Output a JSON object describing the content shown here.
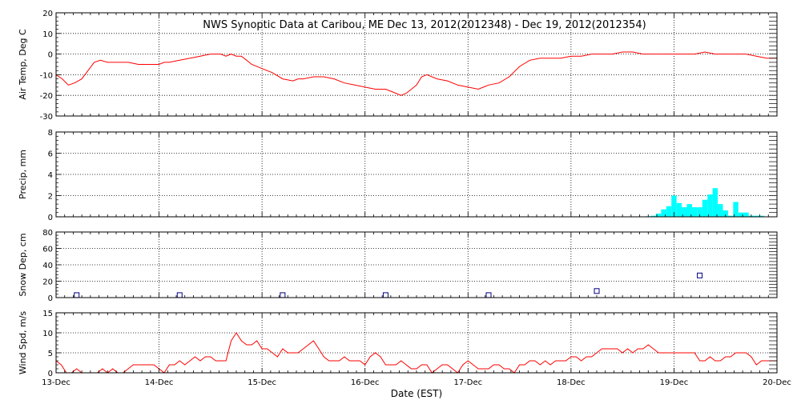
{
  "title": "NWS Synoptic Data at Caribou, ME   Dec 13, 2012(2012348) - Dec 19, 2012(2012354)",
  "xlabel": "Date (EST)",
  "x_tick_labels": [
    "13-Dec",
    "14-Dec",
    "15-Dec",
    "16-Dec",
    "17-Dec",
    "18-Dec",
    "19-Dec",
    "20-Dec"
  ],
  "colors": {
    "line": "#ff0000",
    "bar": "#00ffff",
    "marker": "#000080",
    "axis": "#000000"
  },
  "chart_data": [
    {
      "type": "line",
      "ylabel": "Air Temp, Deg C",
      "xlim": [
        0,
        7
      ],
      "ylim": [
        -30,
        20
      ],
      "yticks": [
        -30,
        -20,
        -10,
        0,
        10,
        20
      ],
      "grid": true,
      "series": [
        {
          "x": [
            0,
            0.06,
            0.12,
            0.18,
            0.25,
            0.31,
            0.37,
            0.43,
            0.5,
            0.6,
            0.7,
            0.8,
            0.9,
            1.0,
            1.05,
            1.1,
            1.2,
            1.3,
            1.4,
            1.5,
            1.55,
            1.6,
            1.65,
            1.7,
            1.75,
            1.8,
            1.85,
            1.9,
            2.0,
            2.1,
            2.2,
            2.3,
            2.35,
            2.4,
            2.5,
            2.6,
            2.7,
            2.8,
            2.9,
            3.0,
            3.1,
            3.2,
            3.25,
            3.3,
            3.35,
            3.4,
            3.45,
            3.5,
            3.55,
            3.6,
            3.7,
            3.8,
            3.9,
            4.0,
            4.1,
            4.15,
            4.2,
            4.3,
            4.4,
            4.5,
            4.6,
            4.7,
            4.8,
            4.9,
            5.0,
            5.1,
            5.2,
            5.3,
            5.4,
            5.5,
            5.6,
            5.7,
            5.8,
            5.9,
            6.0,
            6.1,
            6.2,
            6.3,
            6.4,
            6.5,
            6.6,
            6.7,
            6.8,
            6.9,
            7.0
          ],
          "y": [
            -10,
            -12,
            -15,
            -14,
            -12,
            -8,
            -4,
            -3,
            -4,
            -4,
            -4,
            -5,
            -5,
            -5,
            -4,
            -4,
            -3,
            -2,
            -1,
            0,
            0,
            0,
            -1,
            0,
            -1,
            -1,
            -3,
            -5,
            -7,
            -9,
            -12,
            -13,
            -12,
            -12,
            -11,
            -11,
            -12,
            -14,
            -15,
            -16,
            -17,
            -17,
            -18,
            -19,
            -20,
            -19,
            -17,
            -15,
            -11,
            -10,
            -12,
            -13,
            -15,
            -16,
            -17,
            -16,
            -15,
            -14,
            -11,
            -6,
            -3,
            -2,
            -2,
            -2,
            -1,
            -1,
            0,
            0,
            0,
            1,
            1,
            0,
            0,
            0,
            0,
            0,
            0,
            1,
            0,
            0,
            0,
            0,
            -1,
            -2,
            -2
          ]
        }
      ]
    },
    {
      "type": "bar",
      "ylabel": "Precip, mm",
      "xlim": [
        0,
        7
      ],
      "ylim": [
        0,
        8
      ],
      "yticks": [
        0,
        2,
        4,
        6,
        8
      ],
      "grid": true,
      "x": [
        5.75,
        5.8,
        5.85,
        5.9,
        5.95,
        6.0,
        6.05,
        6.1,
        6.15,
        6.2,
        6.25,
        6.3,
        6.35,
        6.4,
        6.45,
        6.5,
        6.55,
        6.6,
        6.65,
        6.7,
        6.75,
        6.8,
        6.85
      ],
      "values": [
        0.05,
        0.1,
        0.3,
        0.7,
        1.0,
        2.0,
        1.3,
        0.9,
        1.2,
        0.9,
        0.9,
        1.6,
        2.1,
        2.7,
        1.2,
        0.6,
        0.1,
        1.4,
        0.4,
        0.4,
        0.1,
        0.1,
        0.1
      ]
    },
    {
      "type": "scatter",
      "ylabel": "Snow Dep, cm",
      "xlim": [
        0,
        7
      ],
      "ylim": [
        0,
        80
      ],
      "yticks": [
        0,
        20,
        40,
        60,
        80
      ],
      "grid": true,
      "x": [
        0.2,
        1.2,
        2.2,
        3.2,
        4.2,
        5.25,
        6.25
      ],
      "values": [
        3,
        3,
        3,
        3,
        3,
        8,
        27
      ]
    },
    {
      "type": "line",
      "ylabel": "Wind Spd, m/s",
      "xlim": [
        0,
        7
      ],
      "ylim": [
        0,
        15
      ],
      "yticks": [
        0,
        5,
        10,
        15
      ],
      "grid": true,
      "series": [
        {
          "x": [
            0,
            0.05,
            0.1,
            0.15,
            0.2,
            0.25,
            0.3,
            0.35,
            0.4,
            0.45,
            0.5,
            0.55,
            0.6,
            0.65,
            0.7,
            0.75,
            0.8,
            0.85,
            0.9,
            0.95,
            1.0,
            1.05,
            1.1,
            1.15,
            1.2,
            1.25,
            1.3,
            1.35,
            1.4,
            1.45,
            1.5,
            1.55,
            1.6,
            1.65,
            1.7,
            1.75,
            1.8,
            1.85,
            1.9,
            1.95,
            2.0,
            2.05,
            2.1,
            2.15,
            2.2,
            2.25,
            2.3,
            2.35,
            2.4,
            2.45,
            2.5,
            2.55,
            2.6,
            2.65,
            2.7,
            2.75,
            2.8,
            2.85,
            2.9,
            2.95,
            3.0,
            3.05,
            3.1,
            3.15,
            3.2,
            3.25,
            3.3,
            3.35,
            3.4,
            3.45,
            3.5,
            3.55,
            3.6,
            3.65,
            3.7,
            3.75,
            3.8,
            3.85,
            3.9,
            3.95,
            4.0,
            4.05,
            4.1,
            4.15,
            4.2,
            4.25,
            4.3,
            4.35,
            4.4,
            4.45,
            4.5,
            4.55,
            4.6,
            4.65,
            4.7,
            4.75,
            4.8,
            4.85,
            4.9,
            4.95,
            5.0,
            5.05,
            5.1,
            5.15,
            5.2,
            5.25,
            5.3,
            5.35,
            5.4,
            5.45,
            5.5,
            5.55,
            5.6,
            5.65,
            5.7,
            5.75,
            5.8,
            5.85,
            5.9,
            5.95,
            6.0,
            6.05,
            6.1,
            6.15,
            6.2,
            6.25,
            6.3,
            6.35,
            6.4,
            6.45,
            6.5,
            6.55,
            6.6,
            6.65,
            6.7,
            6.75,
            6.8,
            6.85,
            6.9,
            6.95,
            7.0
          ],
          "y": [
            3,
            2,
            0,
            0,
            1,
            0,
            0,
            0,
            0,
            1,
            0,
            1,
            0,
            0,
            1,
            2,
            2,
            2,
            2,
            2,
            1,
            0,
            2,
            2,
            3,
            2,
            3,
            4,
            3,
            4,
            4,
            3,
            3,
            3,
            8,
            10,
            8,
            7,
            7,
            8,
            6,
            6,
            5,
            4,
            6,
            5,
            5,
            5,
            6,
            7,
            8,
            6,
            4,
            3,
            3,
            3,
            4,
            3,
            3,
            3,
            2,
            4,
            5,
            4,
            2,
            2,
            2,
            3,
            2,
            1,
            1,
            2,
            2,
            0,
            1,
            2,
            2,
            1,
            0,
            2,
            3,
            2,
            1,
            1,
            1,
            2,
            2,
            1,
            1,
            0,
            2,
            2,
            3,
            3,
            2,
            3,
            2,
            3,
            3,
            3,
            4,
            4,
            3,
            4,
            4,
            5,
            6,
            6,
            6,
            6,
            5,
            6,
            5,
            6,
            6,
            7,
            6,
            5,
            5,
            5,
            5,
            5,
            5,
            5,
            5,
            3,
            3,
            4,
            3,
            3,
            4,
            4,
            5,
            5,
            5,
            4,
            2,
            3,
            3,
            3,
            3
          ]
        }
      ]
    }
  ]
}
